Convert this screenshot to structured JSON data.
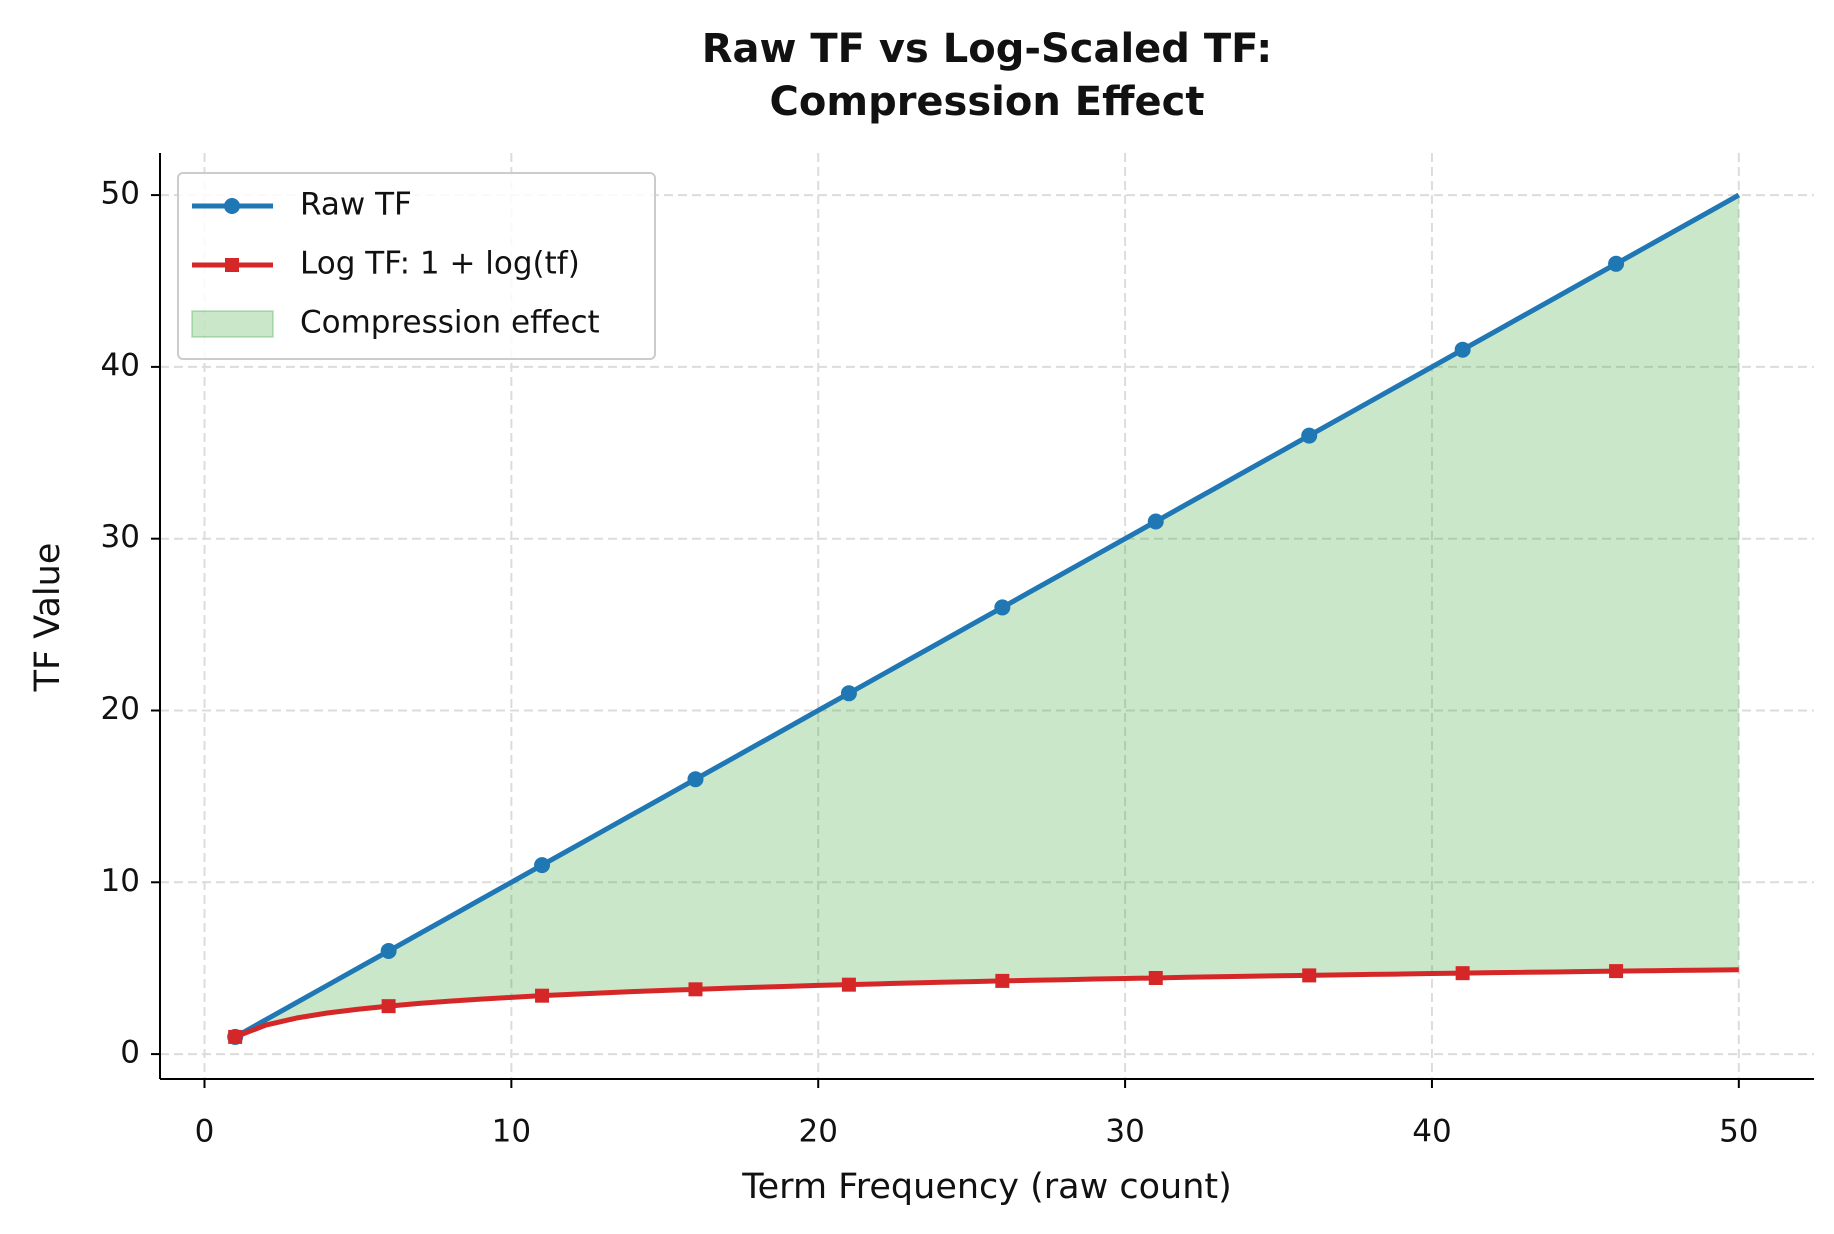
{
  "chart_data": {
    "type": "line",
    "title": "Raw TF vs Log-Scaled TF:",
    "subtitle": "Compression Effect",
    "x_label": "Term Frequency (raw count)",
    "y_label": "TF Value",
    "x": [
      1,
      2,
      3,
      4,
      5,
      6,
      7,
      8,
      9,
      10,
      11,
      12,
      13,
      14,
      15,
      16,
      17,
      18,
      19,
      20,
      21,
      22,
      23,
      24,
      25,
      26,
      27,
      28,
      29,
      30,
      31,
      32,
      33,
      34,
      35,
      36,
      37,
      38,
      39,
      40,
      41,
      42,
      43,
      44,
      45,
      46,
      47,
      48,
      49,
      50
    ],
    "series": [
      {
        "name": "Raw TF",
        "color": "#1f77b4",
        "marker": "circle",
        "values": [
          1,
          2,
          3,
          4,
          5,
          6,
          7,
          8,
          9,
          10,
          11,
          12,
          13,
          14,
          15,
          16,
          17,
          18,
          19,
          20,
          21,
          22,
          23,
          24,
          25,
          26,
          27,
          28,
          29,
          30,
          31,
          32,
          33,
          34,
          35,
          36,
          37,
          38,
          39,
          40,
          41,
          42,
          43,
          44,
          45,
          46,
          47,
          48,
          49,
          50
        ]
      },
      {
        "name": "Log TF: 1 + log(tf)",
        "color": "#d62728",
        "marker": "square",
        "values": [
          1,
          1.69,
          2.1,
          2.39,
          2.61,
          2.79,
          2.95,
          3.08,
          3.2,
          3.3,
          3.4,
          3.48,
          3.56,
          3.64,
          3.71,
          3.77,
          3.83,
          3.89,
          3.94,
          4,
          4.04,
          4.09,
          4.14,
          4.18,
          4.22,
          4.26,
          4.3,
          4.33,
          4.37,
          4.4,
          4.43,
          4.47,
          4.5,
          4.53,
          4.56,
          4.58,
          4.61,
          4.64,
          4.66,
          4.69,
          4.71,
          4.74,
          4.76,
          4.78,
          4.81,
          4.83,
          4.85,
          4.87,
          4.89,
          4.91
        ]
      }
    ],
    "markevery": 5,
    "fill": {
      "name": "Compression effect",
      "color": "#2ca02c",
      "alpha": 0.25
    },
    "xlim": [
      -1.45,
      52.45
    ],
    "ylim": [
      -1.45,
      52.45
    ],
    "xticks": [
      0,
      10,
      20,
      30,
      40,
      50
    ],
    "yticks": [
      0,
      10,
      20,
      30,
      40,
      50
    ],
    "grid": true,
    "legend": "upper left"
  }
}
